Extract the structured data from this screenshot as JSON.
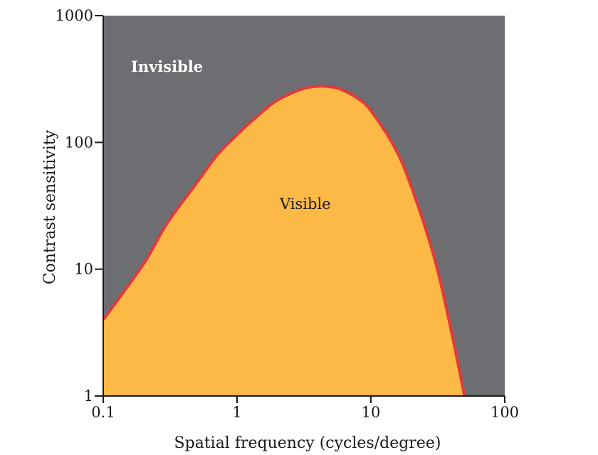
{
  "chart_data": {
    "type": "area",
    "xlabel": "Spatial frequency (cycles/degree)",
    "ylabel": "Contrast sensitivity",
    "xscale": "log",
    "yscale": "log",
    "xlim": [
      0.1,
      100
    ],
    "ylim": [
      1,
      1000
    ],
    "xticks": [
      "0.1",
      "1",
      "10",
      "100"
    ],
    "yticks": [
      "1",
      "10",
      "100",
      "1000"
    ],
    "region_labels": {
      "above": "Invisible",
      "below": "Visible"
    },
    "series": [
      {
        "x": [
          0.1,
          0.2,
          0.3,
          0.5,
          0.7,
          1,
          1.5,
          2,
          3,
          4,
          5,
          6,
          8,
          10,
          15,
          20,
          30,
          40,
          50
        ],
        "y": [
          4,
          11,
          23,
          48,
          78,
          115,
          170,
          215,
          262,
          277,
          274,
          262,
          222,
          178,
          92,
          45,
          12,
          3.2,
          1
        ]
      }
    ],
    "colors": {
      "invisible_region": "#6d6e71",
      "visible_region": "#fdb945",
      "curve": "#e0393e",
      "axis": "#1a1a1a",
      "invisible_text": "#ffffff",
      "visible_text": "#1a1a1a"
    },
    "grid": false,
    "legend": "none"
  }
}
